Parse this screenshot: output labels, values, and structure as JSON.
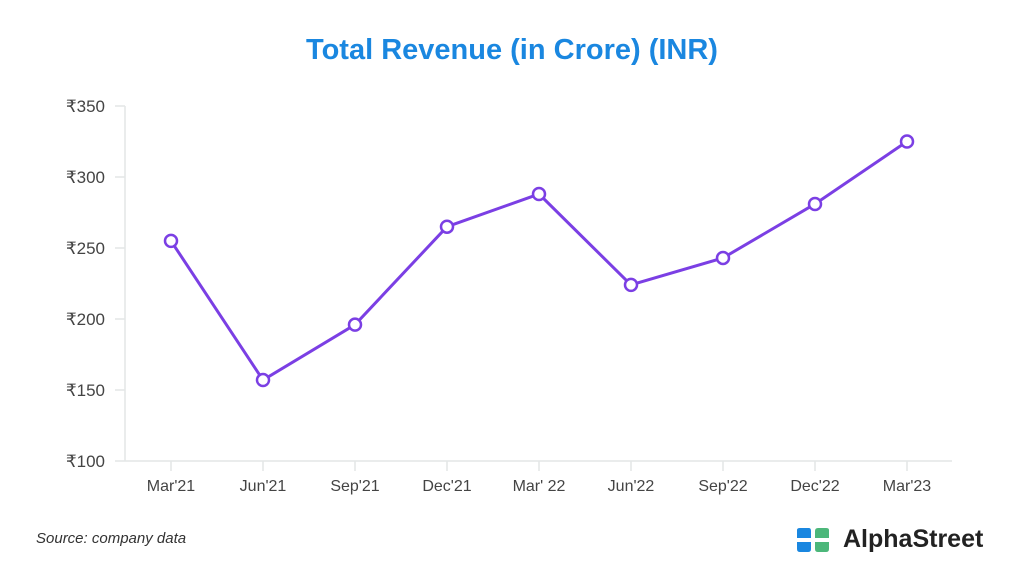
{
  "chart_data": {
    "type": "line",
    "title": "Total Revenue (in Crore) (INR)",
    "xlabel": "",
    "ylabel": "",
    "categories": [
      "Mar'21",
      "Jun'21",
      "Sep'21",
      "Dec'21",
      "Mar' 22",
      "Jun'22",
      "Sep'22",
      "Dec'22",
      "Mar'23"
    ],
    "series": [
      {
        "name": "Total Revenue",
        "values": [
          255,
          157,
          196,
          265,
          288,
          224,
          243,
          281,
          325
        ]
      }
    ],
    "ylim": [
      100,
      350
    ],
    "yticks": [
      100,
      150,
      200,
      250,
      300,
      350
    ],
    "ytick_prefix": "₹",
    "grid": false,
    "line_color": "#7b3fe4",
    "title_color": "#1a87e0"
  },
  "footer": {
    "source": "Source: company data",
    "brand": "AlphaStreet"
  }
}
